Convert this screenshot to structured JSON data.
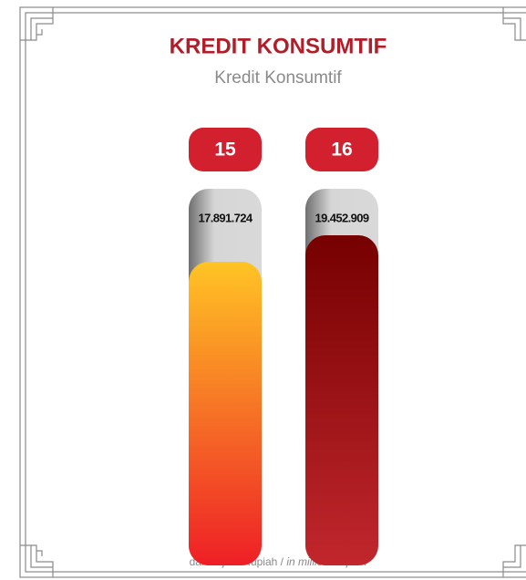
{
  "chart_data": {
    "type": "bar",
    "title": "KREDIT KONSUMTIF",
    "subtitle": "Kredit Konsumtif",
    "categories": [
      "15",
      "16"
    ],
    "values": [
      17891724,
      19452909
    ],
    "value_labels": [
      "17.891.724",
      "19.452.909"
    ],
    "bar_colors": [
      {
        "top": "#ffc425",
        "bottom": "#ee1f26"
      },
      {
        "top": "#760000",
        "bottom": "#c1272d"
      }
    ],
    "badge_color": "#d2202f",
    "note": "dalam juta Rupiah /",
    "note_en": "in million Rupiah"
  }
}
